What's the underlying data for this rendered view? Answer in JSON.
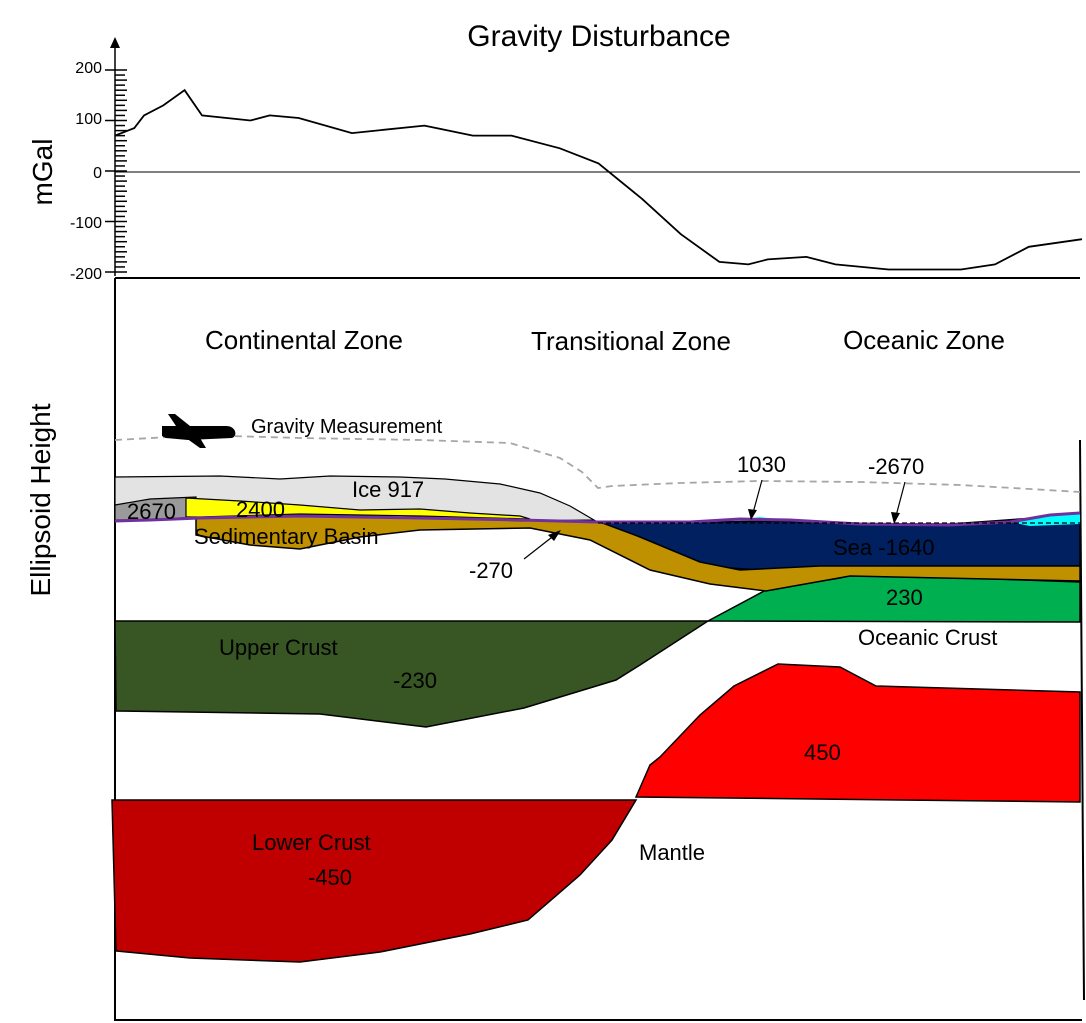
{
  "title": "Gravity Disturbance",
  "profile": {
    "ylabel": "mGal",
    "ticks": [
      "200",
      "100",
      "0",
      "-100",
      "-200"
    ],
    "ylim": [
      -200,
      200
    ],
    "baseline_value": 0,
    "series": [
      {
        "x": 0.0,
        "y": 70
      },
      {
        "x": 0.02,
        "y": 85
      },
      {
        "x": 0.03,
        "y": 110
      },
      {
        "x": 0.05,
        "y": 130
      },
      {
        "x": 0.072,
        "y": 160
      },
      {
        "x": 0.09,
        "y": 110
      },
      {
        "x": 0.14,
        "y": 100
      },
      {
        "x": 0.16,
        "y": 110
      },
      {
        "x": 0.19,
        "y": 105
      },
      {
        "x": 0.245,
        "y": 75
      },
      {
        "x": 0.32,
        "y": 90
      },
      {
        "x": 0.37,
        "y": 70
      },
      {
        "x": 0.41,
        "y": 70
      },
      {
        "x": 0.46,
        "y": 45
      },
      {
        "x": 0.5,
        "y": 15
      },
      {
        "x": 0.545,
        "y": -55
      },
      {
        "x": 0.585,
        "y": -125
      },
      {
        "x": 0.625,
        "y": -180
      },
      {
        "x": 0.655,
        "y": -185
      },
      {
        "x": 0.675,
        "y": -175
      },
      {
        "x": 0.715,
        "y": -170
      },
      {
        "x": 0.745,
        "y": -185
      },
      {
        "x": 0.8,
        "y": -195
      },
      {
        "x": 0.875,
        "y": -195
      },
      {
        "x": 0.91,
        "y": -185
      },
      {
        "x": 0.945,
        "y": -150
      },
      {
        "x": 1.0,
        "y": -135
      }
    ]
  },
  "section": {
    "ylabel": "Ellipsoid Height",
    "zones": [
      "Continental Zone",
      "Transitional Zone",
      "Oceanic Zone"
    ],
    "measurement_label": "Gravity Measurement",
    "icons": {
      "aircraft": "airplane-icon"
    },
    "layers": {
      "ice": {
        "label": "Ice 917",
        "color": "#e3e3e3"
      },
      "gray_block": {
        "label": "2670",
        "color": "#9a9a9a"
      },
      "yellow_basin": {
        "label": "2400",
        "color": "#ffff00"
      },
      "sedimentary": {
        "label": "Sedimentary Basin",
        "color": "#bf9000"
      },
      "sediment_value": {
        "label": "-270"
      },
      "sea_surface_a": {
        "label": "1030"
      },
      "sea_surface_b": {
        "label": "-2670"
      },
      "sea": {
        "label": "Sea -1640",
        "color": "#002060"
      },
      "oceanic_crust": {
        "label": "Oceanic Crust",
        "value": "230",
        "color": "#00b050"
      },
      "upper_crust": {
        "label": "Upper Crust",
        "value": "-230",
        "color": "#375623"
      },
      "mantle_anomaly": {
        "value": "450",
        "color": "#ff0000"
      },
      "mantle": {
        "label": "Mantle"
      },
      "lower_crust": {
        "label": "Lower Crust",
        "value": "-450",
        "color": "#c00000"
      }
    },
    "colors": {
      "purple_line": "#7030a0",
      "cyan_water": "#00ffff",
      "dash_line": "#a6a6a6"
    }
  }
}
